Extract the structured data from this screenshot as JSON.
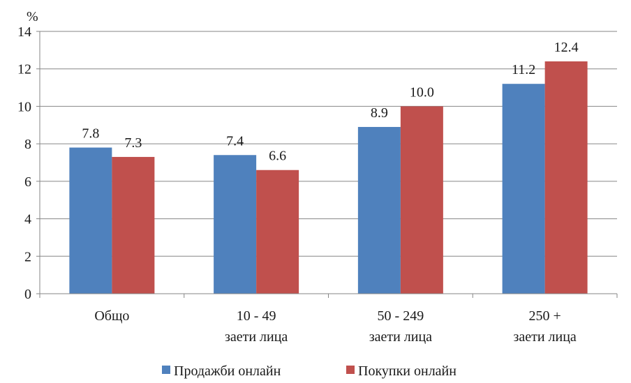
{
  "chart_data": {
    "type": "bar",
    "unit_label": "%",
    "categories": [
      [
        "Общо"
      ],
      [
        "10 - 49",
        "заети лица"
      ],
      [
        "50 - 249",
        "заети лица"
      ],
      [
        "250 +",
        "заети лица"
      ]
    ],
    "series": [
      {
        "name": "Продажби онлайн",
        "color": "#4f81bd",
        "values": [
          7.8,
          7.4,
          8.9,
          11.2
        ]
      },
      {
        "name": "Покупки онлайн",
        "color": "#c0504d",
        "values": [
          7.3,
          6.6,
          10.0,
          12.4
        ]
      }
    ],
    "data_labels": [
      [
        "7.8",
        "7.4",
        "8.9",
        "11.2"
      ],
      [
        "7.3",
        "6.6",
        "10.0",
        "12.4"
      ]
    ],
    "ylim": [
      0,
      14
    ],
    "yticks": [
      "0",
      "2",
      "4",
      "6",
      "8",
      "10",
      "12",
      "14"
    ],
    "grid": true,
    "legend_position": "bottom"
  }
}
